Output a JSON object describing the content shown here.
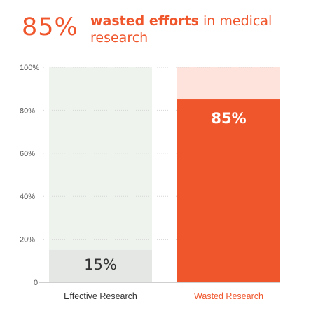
{
  "header": {
    "big_percent": "85%",
    "headline_bold": "wasted efforts",
    "headline_rest_1": " in medical",
    "headline_rest_2": "research"
  },
  "colors": {
    "accent": "#f0562c",
    "effective_bg": "#eef3ee",
    "effective_bar": "#e4e7e4",
    "wasted_bg": "#fde3dc",
    "wasted_bar": "#f0562c"
  },
  "chart_data": {
    "type": "bar",
    "categories": [
      "Effective Research",
      "Wasted Research"
    ],
    "values": [
      15,
      85
    ],
    "value_labels": [
      "15%",
      "85%"
    ],
    "yticks": [
      "0",
      "20%",
      "40%",
      "60%",
      "80%",
      "100%"
    ],
    "ytick_values": [
      0,
      20,
      40,
      60,
      80,
      100
    ],
    "ylim": [
      0,
      100
    ],
    "grid": true,
    "title": "",
    "xlabel": "",
    "ylabel": ""
  }
}
